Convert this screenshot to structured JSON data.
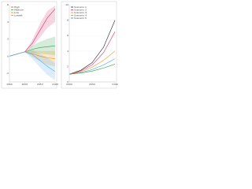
{
  "chart_data": [
    {
      "type": "line",
      "x": [
        1950,
        2000,
        2025,
        2050,
        2075,
        2100
      ],
      "xlim": [
        1950,
        2100
      ],
      "xticks": [
        1950,
        2000,
        2050,
        2100
      ],
      "ylim": [
        -3,
        6
      ],
      "yticks": [
        -2,
        0,
        2,
        4,
        6
      ],
      "series": [
        {
          "name": "High",
          "color": "#d6336c",
          "values": [
            0,
            0.5,
            1.5,
            3,
            4.5,
            5.5
          ],
          "lower": [
            0,
            0.5,
            1.1,
            2.2,
            3.3,
            4.0
          ],
          "upper": [
            0,
            0.5,
            1.9,
            3.8,
            5.3,
            5.9
          ]
        },
        {
          "name": "Medium",
          "color": "#2f9e44",
          "values": [
            0,
            0.5,
            0.8,
            1,
            1.1,
            1.2
          ],
          "lower": [
            0,
            0.5,
            0.4,
            0.3,
            0.2,
            0.1
          ],
          "upper": [
            0,
            0.5,
            1.2,
            1.7,
            2.0,
            2.3
          ]
        },
        {
          "name": "Low",
          "color": "#f08c00",
          "values": [
            0,
            0.5,
            0.3,
            0,
            -0.2,
            -0.3
          ],
          "lower": [
            0,
            0.5,
            -0.1,
            -0.6,
            -1.0,
            -1.2
          ],
          "upper": [
            0,
            0.5,
            0.7,
            0.6,
            0.6,
            0.6
          ]
        },
        {
          "name": "Lowest",
          "color": "#4dabf7",
          "values": [
            0,
            0.5,
            0.2,
            -0.5,
            -1.2,
            -1.8
          ],
          "lower": [
            0,
            0.5,
            -0.3,
            -1.3,
            -2.2,
            -2.8
          ],
          "upper": [
            0,
            0.5,
            0.7,
            0.3,
            -0.2,
            -0.8
          ]
        }
      ]
    },
    {
      "type": "line",
      "x": [
        2000,
        2025,
        2050,
        2075,
        2100
      ],
      "xlim": [
        2000,
        2100
      ],
      "xticks": [
        2000,
        2050,
        2100
      ],
      "ylim": [
        0,
        10
      ],
      "yticks": [
        0,
        2,
        4,
        6,
        8,
        10
      ],
      "series": [
        {
          "name": "Scenario 1",
          "color": "#222222",
          "values": [
            1,
            1.5,
            2.5,
            4.5,
            8
          ]
        },
        {
          "name": "Scenario 2",
          "color": "#d6336c",
          "values": [
            1,
            1.4,
            2.2,
            3.8,
            6.5
          ]
        },
        {
          "name": "Scenario 3",
          "color": "#f08c00",
          "values": [
            1,
            1.3,
            1.9,
            2.8,
            4
          ]
        },
        {
          "name": "Scenario 4",
          "color": "#4dabf7",
          "values": [
            1,
            1.2,
            1.6,
            2.2,
            3
          ]
        },
        {
          "name": "Scenario 5",
          "color": "#2f9e44",
          "values": [
            1,
            1.15,
            1.4,
            1.8,
            2.3
          ]
        }
      ]
    }
  ]
}
